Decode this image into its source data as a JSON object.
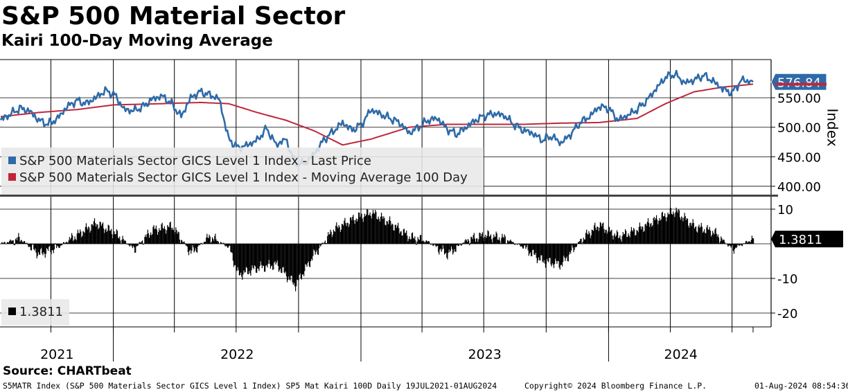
{
  "header": {
    "title": "S&P 500 Material Sector",
    "subtitle": "Kairi 100-Day Moving Average"
  },
  "upper_panel": {
    "axis_title": "Index",
    "y_ticks": [
      "400.00",
      "450.00",
      "500.00",
      "550.00"
    ],
    "last_value_label": "576.84",
    "legend": [
      {
        "label": "S&P 500 Materials Sector GICS Level 1 Index - Last Price",
        "color": "#2e6aa8"
      },
      {
        "label": "S&P 500 Materials Sector GICS Level 1 Index - Moving Average 100 Day",
        "color": "#c0263a"
      }
    ]
  },
  "lower_panel": {
    "y_ticks": [
      "10",
      "-10",
      "-20"
    ],
    "last_value_label": "1.3811",
    "legend": [
      {
        "label": "1.3811",
        "color": "#000000"
      }
    ]
  },
  "x_axis": {
    "year_labels": [
      "2021",
      "2022",
      "2023",
      "2024"
    ]
  },
  "source": "Source: CHARTbeat",
  "footer": {
    "left": "S5MATR Index (S&P 500 Materials Sector GICS Level 1 Index) SP5 Mat Kairi 100D  Daily 19JUL2021-01AUG2024",
    "center": "Copyright© 2024 Bloomberg Finance L.P.",
    "right": "01-Aug-2024 08:54:36"
  },
  "chart_data": [
    {
      "type": "line",
      "x_range": [
        "2021-07-19",
        "2024-08-01"
      ],
      "ylim": [
        380,
        610
      ],
      "grid": true,
      "legend_placement": "bottom-left",
      "series": [
        {
          "name": "S&P 500 Materials Sector GICS Level 1 Index - Last Price",
          "color": "#2e6aa8",
          "points": [
            [
              "2021-07-19",
              512
            ],
            [
              "2021-08-02",
              522
            ],
            [
              "2021-08-16",
              532
            ],
            [
              "2021-08-30",
              528
            ],
            [
              "2021-09-13",
              512
            ],
            [
              "2021-09-27",
              505
            ],
            [
              "2021-10-11",
              515
            ],
            [
              "2021-10-25",
              535
            ],
            [
              "2021-11-08",
              545
            ],
            [
              "2021-11-22",
              540
            ],
            [
              "2021-12-06",
              550
            ],
            [
              "2021-12-20",
              562
            ],
            [
              "2022-01-03",
              555
            ],
            [
              "2022-01-17",
              530
            ],
            [
              "2022-01-31",
              528
            ],
            [
              "2022-02-14",
              535
            ],
            [
              "2022-02-28",
              548
            ],
            [
              "2022-03-14",
              553
            ],
            [
              "2022-03-28",
              540
            ],
            [
              "2022-04-11",
              518
            ],
            [
              "2022-04-25",
              550
            ],
            [
              "2022-05-09",
              560
            ],
            [
              "2022-05-23",
              555
            ],
            [
              "2022-06-06",
              548
            ],
            [
              "2022-06-20",
              480
            ],
            [
              "2022-07-04",
              465
            ],
            [
              "2022-07-18",
              470
            ],
            [
              "2022-08-01",
              478
            ],
            [
              "2022-08-15",
              498
            ],
            [
              "2022-08-29",
              470
            ],
            [
              "2022-09-12",
              480
            ],
            [
              "2022-09-26",
              440
            ],
            [
              "2022-10-10",
              438
            ],
            [
              "2022-10-24",
              455
            ],
            [
              "2022-11-07",
              478
            ],
            [
              "2022-11-21",
              493
            ],
            [
              "2022-12-05",
              508
            ],
            [
              "2022-12-19",
              495
            ],
            [
              "2023-01-02",
              505
            ],
            [
              "2023-01-16",
              530
            ],
            [
              "2023-01-30",
              522
            ],
            [
              "2023-02-13",
              515
            ],
            [
              "2023-02-27",
              508
            ],
            [
              "2023-03-13",
              490
            ],
            [
              "2023-03-27",
              500
            ],
            [
              "2023-04-10",
              512
            ],
            [
              "2023-04-24",
              515
            ],
            [
              "2023-05-08",
              497
            ],
            [
              "2023-05-22",
              488
            ],
            [
              "2023-06-05",
              500
            ],
            [
              "2023-06-19",
              512
            ],
            [
              "2023-07-03",
              520
            ],
            [
              "2023-07-17",
              523
            ],
            [
              "2023-07-31",
              520
            ],
            [
              "2023-08-14",
              505
            ],
            [
              "2023-08-28",
              495
            ],
            [
              "2023-09-11",
              490
            ],
            [
              "2023-09-25",
              478
            ],
            [
              "2023-10-09",
              485
            ],
            [
              "2023-10-23",
              473
            ],
            [
              "2023-11-06",
              488
            ],
            [
              "2023-11-20",
              508
            ],
            [
              "2023-12-04",
              518
            ],
            [
              "2023-12-18",
              535
            ],
            [
              "2024-01-01",
              532
            ],
            [
              "2024-01-15",
              512
            ],
            [
              "2024-01-29",
              520
            ],
            [
              "2024-02-12",
              530
            ],
            [
              "2024-02-26",
              545
            ],
            [
              "2024-03-11",
              565
            ],
            [
              "2024-03-25",
              585
            ],
            [
              "2024-04-08",
              590
            ],
            [
              "2024-04-22",
              575
            ],
            [
              "2024-05-06",
              580
            ],
            [
              "2024-05-20",
              588
            ],
            [
              "2024-06-03",
              578
            ],
            [
              "2024-06-17",
              565
            ],
            [
              "2024-07-01",
              558
            ],
            [
              "2024-07-15",
              580
            ],
            [
              "2024-08-01",
              576.84
            ]
          ]
        },
        {
          "name": "S&P 500 Materials Sector GICS Level 1 Index - Moving Average 100 Day",
          "color": "#c0263a",
          "points": [
            [
              "2021-07-19",
              518
            ],
            [
              "2021-09-13",
              525
            ],
            [
              "2021-11-08",
              530
            ],
            [
              "2022-01-03",
              538
            ],
            [
              "2022-03-14",
              540
            ],
            [
              "2022-05-09",
              542
            ],
            [
              "2022-06-20",
              540
            ],
            [
              "2022-08-01",
              525
            ],
            [
              "2022-09-12",
              512
            ],
            [
              "2022-10-24",
              494
            ],
            [
              "2022-12-05",
              470
            ],
            [
              "2023-01-16",
              480
            ],
            [
              "2023-03-13",
              500
            ],
            [
              "2023-05-08",
              505
            ],
            [
              "2023-07-03",
              505
            ],
            [
              "2023-08-28",
              505
            ],
            [
              "2023-10-23",
              507
            ],
            [
              "2023-12-18",
              508
            ],
            [
              "2024-02-12",
              515
            ],
            [
              "2024-03-25",
              540
            ],
            [
              "2024-05-06",
              560
            ],
            [
              "2024-06-17",
              568
            ],
            [
              "2024-08-01",
              573
            ]
          ]
        }
      ]
    },
    {
      "type": "bar",
      "title": "Kairi 100-Day Moving Average",
      "ylim": [
        -20,
        12
      ],
      "grid": true,
      "series": [
        {
          "name": "1.3811",
          "color": "#000000",
          "points": [
            [
              "2021-07-19",
              0
            ],
            [
              "2021-08-16",
              1.5
            ],
            [
              "2021-09-13",
              -3
            ],
            [
              "2021-10-11",
              -1
            ],
            [
              "2021-11-08",
              2.5
            ],
            [
              "2021-12-06",
              6
            ],
            [
              "2022-01-03",
              3
            ],
            [
              "2022-01-31",
              -1.5
            ],
            [
              "2022-02-28",
              4
            ],
            [
              "2022-03-28",
              5
            ],
            [
              "2022-04-25",
              -2.5
            ],
            [
              "2022-05-23",
              2
            ],
            [
              "2022-06-20",
              -1
            ],
            [
              "2022-07-04",
              -9
            ],
            [
              "2022-08-01",
              -7
            ],
            [
              "2022-08-29",
              -6
            ],
            [
              "2022-09-26",
              -12
            ],
            [
              "2022-10-24",
              -3
            ],
            [
              "2022-11-21",
              4
            ],
            [
              "2022-12-19",
              7
            ],
            [
              "2023-01-16",
              9
            ],
            [
              "2023-02-13",
              6
            ],
            [
              "2023-03-13",
              2
            ],
            [
              "2023-04-10",
              0.5
            ],
            [
              "2023-05-08",
              -3
            ],
            [
              "2023-06-05",
              1
            ],
            [
              "2023-07-03",
              2.5
            ],
            [
              "2023-07-31",
              1.5
            ],
            [
              "2023-08-28",
              -1
            ],
            [
              "2023-09-25",
              -5
            ],
            [
              "2023-10-23",
              -6
            ],
            [
              "2023-11-20",
              1
            ],
            [
              "2023-12-18",
              5.5
            ],
            [
              "2024-01-15",
              2
            ],
            [
              "2024-02-12",
              4
            ],
            [
              "2024-03-11",
              7
            ],
            [
              "2024-04-08",
              9.5
            ],
            [
              "2024-05-06",
              5
            ],
            [
              "2024-06-03",
              3.5
            ],
            [
              "2024-07-01",
              -1.5
            ],
            [
              "2024-08-01",
              1.3811
            ]
          ]
        }
      ]
    }
  ]
}
